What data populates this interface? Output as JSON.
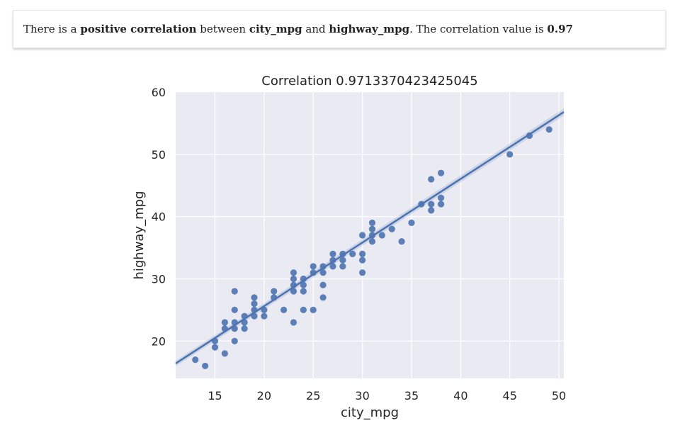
{
  "summary": {
    "t1": "There is a ",
    "b1": "positive correlation",
    "t2": " between ",
    "b2": "city_mpg",
    "t3": " and ",
    "b3": "highway_mpg",
    "t4": ". The correlation value is ",
    "b4": "0.97"
  },
  "colors": {
    "background": "#eaeaf2",
    "grid": "#ffffff",
    "marker": "#4c72b0",
    "line": "#4c72b0"
  },
  "chart_data": {
    "type": "scatter",
    "title": "Correlation 0.9713370423425045",
    "xlabel": "city_mpg",
    "ylabel": "highway_mpg",
    "xlim": [
      11,
      50.5
    ],
    "ylim": [
      14,
      60
    ],
    "xticks": [
      15,
      20,
      25,
      30,
      35,
      40,
      45,
      50
    ],
    "yticks": [
      20,
      30,
      40,
      50
    ],
    "grid": true,
    "regression_line": {
      "x": [
        11,
        50.5
      ],
      "y": [
        16.4,
        56.8
      ]
    },
    "points": [
      [
        13,
        17
      ],
      [
        14,
        16
      ],
      [
        15,
        19
      ],
      [
        15,
        20
      ],
      [
        16,
        18
      ],
      [
        16,
        22
      ],
      [
        16,
        23
      ],
      [
        17,
        20
      ],
      [
        17,
        22
      ],
      [
        17,
        23
      ],
      [
        17,
        25
      ],
      [
        17,
        28
      ],
      [
        18,
        22
      ],
      [
        18,
        23
      ],
      [
        18,
        24
      ],
      [
        19,
        24
      ],
      [
        19,
        25
      ],
      [
        19,
        26
      ],
      [
        19,
        27
      ],
      [
        20,
        24
      ],
      [
        20,
        25
      ],
      [
        21,
        27
      ],
      [
        21,
        28
      ],
      [
        22,
        25
      ],
      [
        23,
        23
      ],
      [
        23,
        28
      ],
      [
        23,
        29
      ],
      [
        23,
        30
      ],
      [
        23,
        31
      ],
      [
        24,
        25
      ],
      [
        24,
        28
      ],
      [
        24,
        29
      ],
      [
        24,
        30
      ],
      [
        25,
        25
      ],
      [
        25,
        31
      ],
      [
        25,
        32
      ],
      [
        26,
        27
      ],
      [
        26,
        29
      ],
      [
        26,
        31
      ],
      [
        26,
        32
      ],
      [
        27,
        32
      ],
      [
        27,
        33
      ],
      [
        27,
        34
      ],
      [
        28,
        32
      ],
      [
        28,
        33
      ],
      [
        28,
        34
      ],
      [
        29,
        34
      ],
      [
        30,
        31
      ],
      [
        30,
        33
      ],
      [
        30,
        34
      ],
      [
        30,
        37
      ],
      [
        31,
        36
      ],
      [
        31,
        37
      ],
      [
        31,
        38
      ],
      [
        31,
        39
      ],
      [
        32,
        37
      ],
      [
        33,
        38
      ],
      [
        34,
        36
      ],
      [
        35,
        39
      ],
      [
        36,
        42
      ],
      [
        37,
        41
      ],
      [
        37,
        42
      ],
      [
        37,
        46
      ],
      [
        38,
        42
      ],
      [
        38,
        43
      ],
      [
        38,
        47
      ],
      [
        45,
        50
      ],
      [
        47,
        53
      ],
      [
        49,
        54
      ]
    ]
  }
}
